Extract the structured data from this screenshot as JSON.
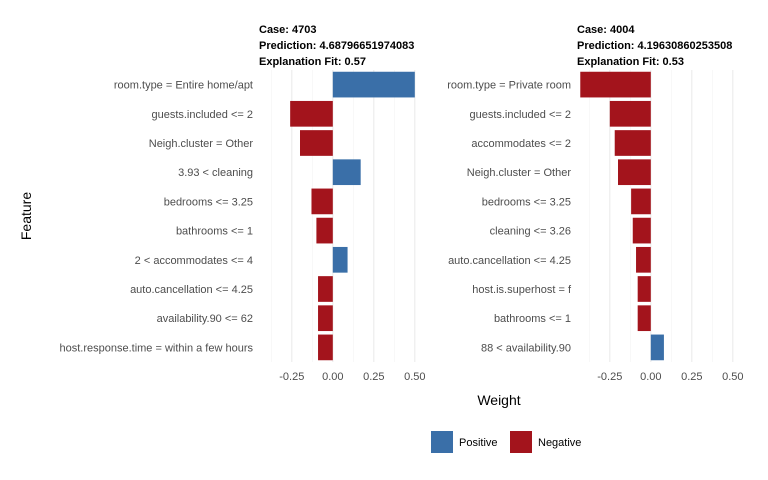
{
  "chart_data": {
    "type": "bar",
    "orientation": "horizontal",
    "xlabel": "Weight",
    "ylabel": "Feature",
    "xlim": [
      -0.45,
      0.55
    ],
    "xticks": [
      -0.25,
      0.0,
      0.25,
      0.5
    ],
    "xtick_labels": [
      "-0.25",
      "0.00",
      "0.25",
      "0.50"
    ],
    "grid": true,
    "legend": {
      "placement": "bottom",
      "entries": [
        {
          "label": "Positive",
          "color": "#3A6FA8"
        },
        {
          "label": "Negative",
          "color": "#A3141C"
        }
      ]
    },
    "colors": {
      "positive": "#3A6FA8",
      "negative": "#A3141C"
    },
    "panels": [
      {
        "title_lines": [
          "Case: 4703",
          "Prediction: 4.68796651974083",
          "Explanation Fit: 0.57"
        ],
        "bars": [
          {
            "feature": "room.type = Entire home/apt",
            "weight": 0.5
          },
          {
            "feature": "guests.included <= 2",
            "weight": -0.26
          },
          {
            "feature": "Neigh.cluster = Other",
            "weight": -0.2
          },
          {
            "feature": "3.93 < cleaning",
            "weight": 0.17
          },
          {
            "feature": "bedrooms <= 3.25",
            "weight": -0.13
          },
          {
            "feature": "bathrooms <= 1",
            "weight": -0.1
          },
          {
            "feature": "2 < accommodates <= 4",
            "weight": 0.09
          },
          {
            "feature": "auto.cancellation <= 4.25",
            "weight": -0.09
          },
          {
            "feature": "availability.90 <= 62",
            "weight": -0.09
          },
          {
            "feature": "host.response.time = within a few hours",
            "weight": -0.09
          }
        ]
      },
      {
        "title_lines": [
          "Case: 4004",
          "Prediction: 4.19630860253508",
          "Explanation Fit: 0.53"
        ],
        "bars": [
          {
            "feature": "room.type = Private room",
            "weight": -0.43
          },
          {
            "feature": "guests.included <= 2",
            "weight": -0.25
          },
          {
            "feature": "accommodates <= 2",
            "weight": -0.22
          },
          {
            "feature": "Neigh.cluster = Other",
            "weight": -0.2
          },
          {
            "feature": "bedrooms <= 3.25",
            "weight": -0.12
          },
          {
            "feature": "cleaning <= 3.26",
            "weight": -0.11
          },
          {
            "feature": "auto.cancellation <= 4.25",
            "weight": -0.09
          },
          {
            "feature": "host.is.superhost = f",
            "weight": -0.08
          },
          {
            "feature": "bathrooms <= 1",
            "weight": -0.08
          },
          {
            "feature": "88 < availability.90",
            "weight": 0.08
          }
        ]
      }
    ]
  }
}
